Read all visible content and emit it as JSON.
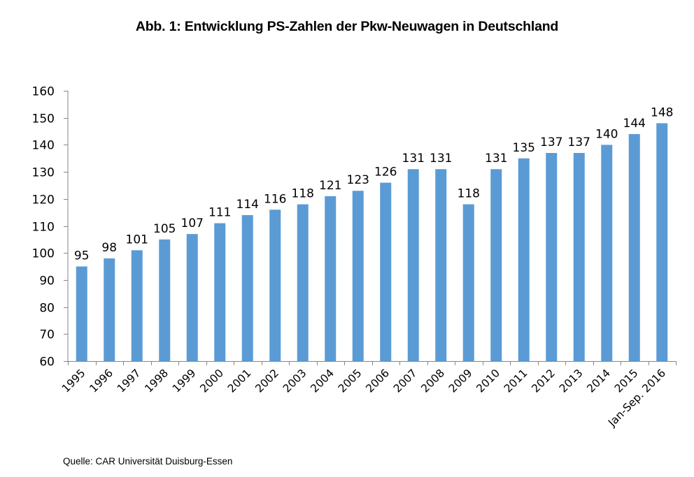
{
  "title": "Abb. 1: Entwicklung PS-Zahlen der Pkw-Neuwagen in Deutschland",
  "source": "Quelle: CAR Universität Duisburg-Essen",
  "chart_data": {
    "type": "bar",
    "title": "Abb. 1: Entwicklung PS-Zahlen der Pkw-Neuwagen in Deutschland",
    "xlabel": "",
    "ylabel": "",
    "categories": [
      "1995",
      "1996",
      "1997",
      "1998",
      "1999",
      "2000",
      "2001",
      "2002",
      "2003",
      "2004",
      "2005",
      "2006",
      "2007",
      "2008",
      "2009",
      "2010",
      "2011",
      "2012",
      "2013",
      "2014",
      "2015",
      "Jan-Sep. 2016"
    ],
    "values": [
      95,
      98,
      101,
      105,
      107,
      111,
      114,
      116,
      118,
      121,
      123,
      126,
      131,
      131,
      118,
      131,
      135,
      137,
      137,
      140,
      144,
      148
    ],
    "data_labels": [
      "95",
      "98",
      "101",
      "105",
      "107",
      "111",
      "114",
      "116",
      "118",
      "121",
      "123",
      "126",
      "131",
      "131",
      "118",
      "131",
      "135",
      "137",
      "137",
      "140",
      "144",
      "148"
    ],
    "ylim": [
      60,
      160
    ],
    "yticks": [
      60,
      70,
      80,
      90,
      100,
      110,
      120,
      130,
      140,
      150,
      160
    ],
    "ytick_labels": [
      "60",
      "70",
      "80",
      "90",
      "100",
      "110",
      "120",
      "130",
      "140",
      "150",
      "160"
    ],
    "grid": false,
    "legend": "none",
    "bar_color": "#5b9bd5",
    "axis_color": "#868686"
  }
}
